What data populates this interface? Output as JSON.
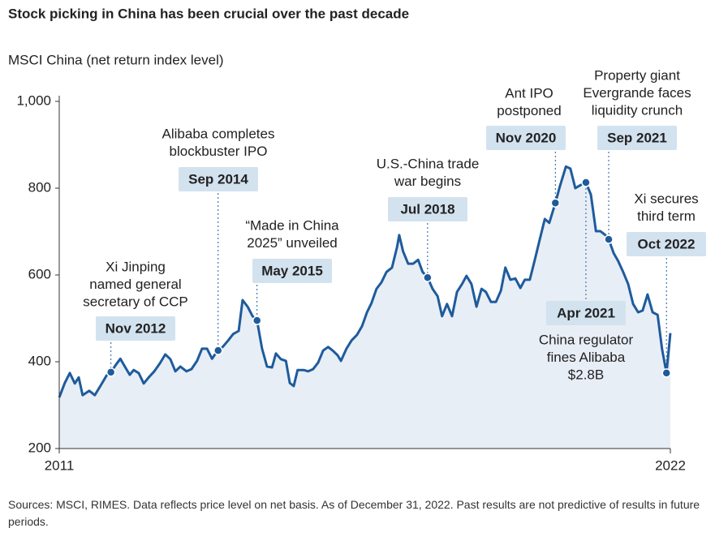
{
  "chart_data": {
    "type": "area",
    "title": "Stock picking in China has been crucial over the past decade",
    "subtitle": "MSCI China (net return index level)",
    "footnote": "Sources: MSCI, RIMES. Data reflects price level on net basis. As of December 31, 2022. Past results are not predictive of results in future periods.",
    "xlim": [
      2011,
      2022
    ],
    "xticks": [
      2011,
      2022
    ],
    "ylim": [
      200,
      1000
    ],
    "yticks": [
      200,
      400,
      600,
      800,
      {
        "value": 1000,
        "label": "1,000"
      }
    ],
    "series": [
      {
        "color": "#1e5b9c",
        "fill": "#e8eef6",
        "x": [
          2011.0,
          2011.1,
          2011.19,
          2011.28,
          2011.35,
          2011.42,
          2011.54,
          2011.64,
          2011.75,
          2011.85,
          2011.93,
          2012.02,
          2012.1,
          2012.18,
          2012.27,
          2012.34,
          2012.43,
          2012.52,
          2012.61,
          2012.71,
          2012.81,
          2012.91,
          2013.0,
          2013.09,
          2013.18,
          2013.29,
          2013.38,
          2013.48,
          2013.57,
          2013.66,
          2013.75,
          2013.85,
          2013.94,
          2014.04,
          2014.13,
          2014.23,
          2014.3,
          2014.39,
          2014.48,
          2014.56,
          2014.65,
          2014.74,
          2014.83,
          2014.9,
          2014.99,
          2015.08,
          2015.15,
          2015.22,
          2015.29,
          2015.4,
          2015.48,
          2015.57,
          2015.66,
          2015.75,
          2015.84,
          2015.92,
          2016.01,
          2016.07,
          2016.17,
          2016.26,
          2016.36,
          2016.45,
          2016.54,
          2016.62,
          2016.71,
          2016.8,
          2016.89,
          2016.99,
          2017.08,
          2017.12,
          2017.19,
          2017.28,
          2017.37,
          2017.46,
          2017.54,
          2017.63,
          2017.72,
          2017.81,
          2017.89,
          2017.98,
          2018.07,
          2018.16,
          2018.25,
          2018.33,
          2018.42,
          2018.51,
          2018.6,
          2018.68,
          2018.77,
          2018.86,
          2018.95,
          2019.03,
          2019.12,
          2019.21,
          2019.3,
          2019.38,
          2019.47,
          2019.56,
          2019.65,
          2019.74,
          2019.82,
          2019.93,
          2020.01,
          2020.12,
          2020.2,
          2020.29,
          2020.38,
          2020.48,
          2020.57,
          2020.66,
          2020.74,
          2020.83,
          2020.89,
          2020.98,
          2021.06,
          2021.15,
          2021.24,
          2021.33,
          2021.42,
          2021.5,
          2021.59,
          2021.68,
          2021.77,
          2021.85,
          2021.93,
          2022.0
        ],
        "values": [
          318,
          351,
          374,
          350,
          364,
          323,
          333,
          323,
          346,
          368,
          376,
          393,
          407,
          389,
          370,
          381,
          374,
          350,
          364,
          378,
          396,
          417,
          406,
          378,
          389,
          378,
          383,
          402,
          430,
          430,
          407,
          426,
          434,
          449,
          464,
          471,
          542,
          527,
          505,
          495,
          430,
          389,
          387,
          419,
          406,
          402,
          351,
          344,
          381,
          381,
          378,
          383,
          398,
          426,
          434,
          426,
          415,
          402,
          430,
          449,
          462,
          482,
          514,
          535,
          568,
          583,
          607,
          617,
          664,
          692,
          654,
          626,
          626,
          635,
          607,
          594,
          568,
          551,
          505,
          533,
          505,
          561,
          579,
          598,
          579,
          527,
          568,
          561,
          538,
          538,
          564,
          617,
          589,
          592,
          570,
          589,
          589,
          635,
          682,
          729,
          720,
          766,
          804,
          850,
          845,
          800,
          807,
          813,
          785,
          701,
          701,
          692,
          682,
          650,
          632,
          607,
          579,
          533,
          514,
          518,
          555,
          514,
          508,
          430,
          374,
          466
        ]
      }
    ],
    "annotations": [
      {
        "x": 2011.93,
        "value": 376,
        "date": "Nov 2012",
        "text": [
          "Xi Jinping",
          "named general",
          "secretary of CCP"
        ]
      },
      {
        "x": 2013.86,
        "value": 426,
        "date": "Sep 2014",
        "text": [
          "Alibaba completes",
          "blockbuster IPO"
        ]
      },
      {
        "x": 2014.56,
        "value": 495,
        "date": "May 2015",
        "text": [
          "“Made in China",
          "2025” unveiled"
        ]
      },
      {
        "x": 2017.63,
        "value": 594,
        "date": "Jul 2018",
        "text": [
          "U.S.-China trade",
          "war begins"
        ]
      },
      {
        "x": 2019.93,
        "value": 766,
        "date": "Nov 2020",
        "text": [
          "Ant IPO",
          "postponed"
        ]
      },
      {
        "x": 2020.48,
        "value": 813,
        "date": "Apr 2021",
        "text": [
          "China regulator",
          "fines Alibaba",
          "$2.8B"
        ]
      },
      {
        "x": 2020.89,
        "value": 682,
        "date": "Sep 2021",
        "text": [
          "Property giant",
          "Evergrande faces",
          "liquidity crunch"
        ]
      },
      {
        "x": 2021.93,
        "value": 374,
        "date": "Oct 2022",
        "text": [
          "Xi secures",
          "third term"
        ]
      }
    ]
  }
}
